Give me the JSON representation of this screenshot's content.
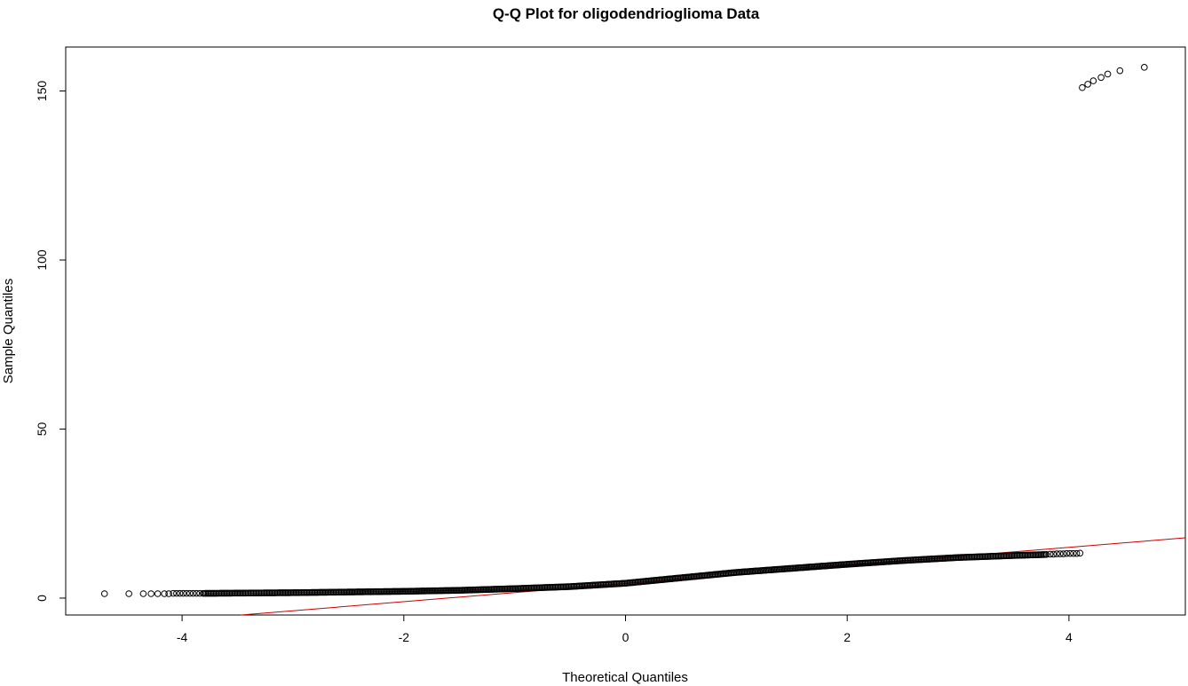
{
  "chart_data": {
    "type": "scatter",
    "title": "Q-Q Plot for oligodendrioglioma Data",
    "xlabel": "Theoretical Quantiles",
    "ylabel": "Sample Quantiles",
    "xlim": [
      -5.05,
      5.05
    ],
    "ylim": [
      -5,
      163
    ],
    "x_ticks": [
      -4,
      -2,
      0,
      2,
      4
    ],
    "y_ticks": [
      0,
      50,
      100,
      150
    ],
    "x_tick_labels": [
      "-4",
      "-2",
      "0",
      "2",
      "4"
    ],
    "y_tick_labels": [
      "0",
      "50",
      "100",
      "150"
    ],
    "grid": false,
    "legend": "none",
    "marker": "open-circle",
    "point_color": "#000000",
    "reference_line": {
      "intercept": 4.3,
      "slope": 2.68,
      "color": "#cc0000"
    },
    "outliers": {
      "x": [
        4.12,
        4.17,
        4.22,
        4.29,
        4.35,
        4.46,
        4.68
      ],
      "y": [
        151.0,
        152.0,
        153.0,
        154.0,
        155.0,
        156.0,
        157.0
      ]
    },
    "low_tail": {
      "x": [
        -4.7,
        -4.48,
        -4.35,
        -4.28,
        -4.22,
        -4.16,
        -4.12,
        -4.08,
        -4.05,
        -4.02,
        -3.99,
        -3.96,
        -3.93,
        -3.9,
        -3.87,
        -3.84,
        -3.81
      ],
      "y": [
        1.3,
        1.3,
        1.3,
        1.3,
        1.3,
        1.3,
        1.3,
        1.4,
        1.4,
        1.4,
        1.4,
        1.4,
        1.4,
        1.4,
        1.4,
        1.4,
        1.4
      ]
    },
    "high_tail": {
      "x": [
        3.83,
        3.86,
        3.89,
        3.92,
        3.95,
        3.98,
        4.01,
        4.04,
        4.07,
        4.1
      ],
      "y": [
        13.0,
        13.0,
        13.1,
        13.1,
        13.1,
        13.2,
        13.2,
        13.2,
        13.2,
        13.3
      ]
    },
    "bulk_curve": {
      "x": [
        -3.8,
        -3.0,
        -2.0,
        -1.5,
        -1.0,
        -0.5,
        0.0,
        0.5,
        1.0,
        1.5,
        2.0,
        2.5,
        3.0,
        3.5,
        3.8
      ],
      "y": [
        1.4,
        1.6,
        2.0,
        2.3,
        2.8,
        3.4,
        4.4,
        6.0,
        7.6,
        8.8,
        10.0,
        11.1,
        12.0,
        12.6,
        12.9
      ]
    }
  }
}
